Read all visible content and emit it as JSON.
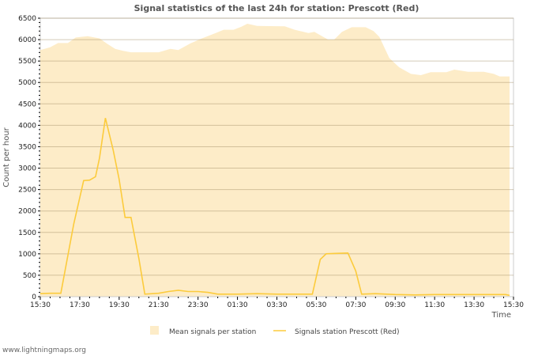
{
  "chart_data": {
    "type": "area+line",
    "title": "Signal statistics of the last 24h for station: Prescott (Red)",
    "xlabel": "Time",
    "ylabel": "Count per hour",
    "x_unit": "hours since 15:30",
    "xlim": [
      0,
      24
    ],
    "ylim": [
      0,
      6500
    ],
    "yticks": [
      0,
      500,
      1000,
      1500,
      2000,
      2500,
      3000,
      3500,
      4000,
      4500,
      5000,
      5500,
      6000,
      6500
    ],
    "xtick_labels": [
      "15:30",
      "17:30",
      "19:30",
      "21:30",
      "23:30",
      "01:30",
      "03:30",
      "05:30",
      "07:30",
      "09:30",
      "11:30",
      "13:30",
      "15:30"
    ],
    "grid": true,
    "legend_position": "bottom",
    "series": [
      {
        "name": "Mean signals per station",
        "kind": "area",
        "color": "#fdecc8",
        "points": [
          [
            0,
            5755
          ],
          [
            0.5,
            5820
          ],
          [
            0.9,
            5920
          ],
          [
            1.4,
            5920
          ],
          [
            1.8,
            6050
          ],
          [
            2.4,
            6080
          ],
          [
            3.0,
            6030
          ],
          [
            3.4,
            5900
          ],
          [
            3.8,
            5785
          ],
          [
            4.2,
            5740
          ],
          [
            4.6,
            5705
          ],
          [
            5.5,
            5705
          ],
          [
            6.0,
            5705
          ],
          [
            6.6,
            5785
          ],
          [
            7.0,
            5755
          ],
          [
            7.6,
            5910
          ],
          [
            8.2,
            6030
          ],
          [
            8.9,
            6155
          ],
          [
            9.3,
            6230
          ],
          [
            9.8,
            6230
          ],
          [
            10.2,
            6300
          ],
          [
            10.5,
            6370
          ],
          [
            11.0,
            6320
          ],
          [
            11.6,
            6315
          ],
          [
            12.4,
            6310
          ],
          [
            12.9,
            6230
          ],
          [
            13.6,
            6155
          ],
          [
            13.9,
            6180
          ],
          [
            14.6,
            6000
          ],
          [
            14.9,
            6000
          ],
          [
            15.3,
            6180
          ],
          [
            15.8,
            6290
          ],
          [
            16.5,
            6290
          ],
          [
            16.9,
            6200
          ],
          [
            17.2,
            6060
          ],
          [
            17.7,
            5570
          ],
          [
            18.2,
            5355
          ],
          [
            18.8,
            5200
          ],
          [
            19.3,
            5170
          ],
          [
            19.8,
            5240
          ],
          [
            20.6,
            5240
          ],
          [
            21.0,
            5300
          ],
          [
            21.7,
            5250
          ],
          [
            22.5,
            5250
          ],
          [
            23.0,
            5200
          ],
          [
            23.3,
            5140
          ],
          [
            23.8,
            5140
          ]
        ]
      },
      {
        "name": "Signals station Prescott (Red)",
        "kind": "line",
        "color": "#fccb3c",
        "points": [
          [
            0,
            70
          ],
          [
            0.5,
            80
          ],
          [
            1.04,
            80
          ],
          [
            1.7,
            1700
          ],
          [
            2.2,
            2710
          ],
          [
            2.5,
            2720
          ],
          [
            2.8,
            2800
          ],
          [
            3.0,
            3230
          ],
          [
            3.3,
            4170
          ],
          [
            3.7,
            3420
          ],
          [
            4.0,
            2740
          ],
          [
            4.3,
            1850
          ],
          [
            4.6,
            1850
          ],
          [
            5.0,
            890
          ],
          [
            5.3,
            60
          ],
          [
            6.0,
            80
          ],
          [
            6.5,
            120
          ],
          [
            7.0,
            150
          ],
          [
            7.5,
            120
          ],
          [
            8.0,
            120
          ],
          [
            8.5,
            100
          ],
          [
            9.0,
            60
          ],
          [
            10.0,
            60
          ],
          [
            11.0,
            70
          ],
          [
            12.0,
            60
          ],
          [
            13.0,
            60
          ],
          [
            13.8,
            60
          ],
          [
            14.2,
            870
          ],
          [
            14.5,
            1000
          ],
          [
            15.0,
            1010
          ],
          [
            15.6,
            1020
          ],
          [
            16.0,
            600
          ],
          [
            16.3,
            60
          ],
          [
            17.0,
            70
          ],
          [
            18.0,
            50
          ],
          [
            19.0,
            40
          ],
          [
            20.0,
            50
          ],
          [
            21.0,
            50
          ],
          [
            22.0,
            50
          ],
          [
            23.0,
            50
          ],
          [
            23.6,
            50
          ],
          [
            23.8,
            30
          ]
        ]
      }
    ]
  },
  "footer": "www.lightningmaps.org"
}
